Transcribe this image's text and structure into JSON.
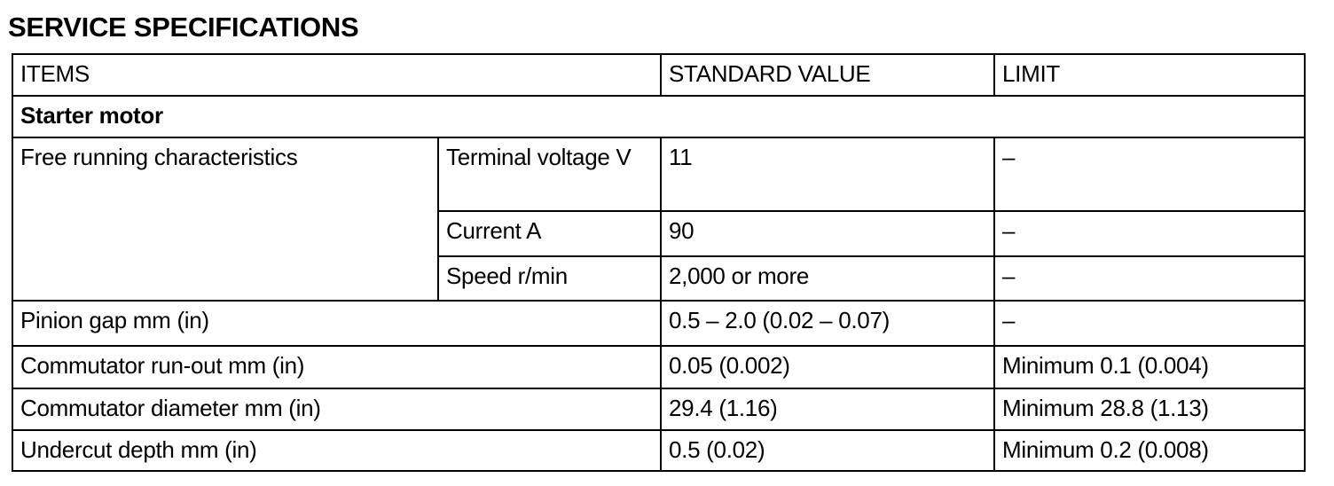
{
  "title": "SERVICE SPECIFICATIONS",
  "headers": {
    "items": "ITEMS",
    "standard": "STANDARD VALUE",
    "limit": "LIMIT"
  },
  "section": "Starter motor",
  "free_running": {
    "label": "Free running characteristics",
    "rows": [
      {
        "item": "Terminal voltage V",
        "standard": "11",
        "limit": "–"
      },
      {
        "item": "Current A",
        "standard": "90",
        "limit": "–"
      },
      {
        "item": "Speed r/min",
        "standard": "2,000 or more",
        "limit": "–"
      }
    ]
  },
  "rows": [
    {
      "item": "Pinion gap mm (in)",
      "standard": "0.5 – 2.0 (0.02 – 0.07)",
      "limit": "–"
    },
    {
      "item": "Commutator run-out mm (in)",
      "standard": "0.05 (0.002)",
      "limit": "Minimum 0.1 (0.004)"
    },
    {
      "item": "Commutator diameter mm (in)",
      "standard": "29.4 (1.16)",
      "limit": "Minimum 28.8 (1.13)"
    },
    {
      "item": "Undercut depth mm (in)",
      "standard": "0.5 (0.02)",
      "limit": "Minimum 0.2 (0.008)"
    }
  ]
}
